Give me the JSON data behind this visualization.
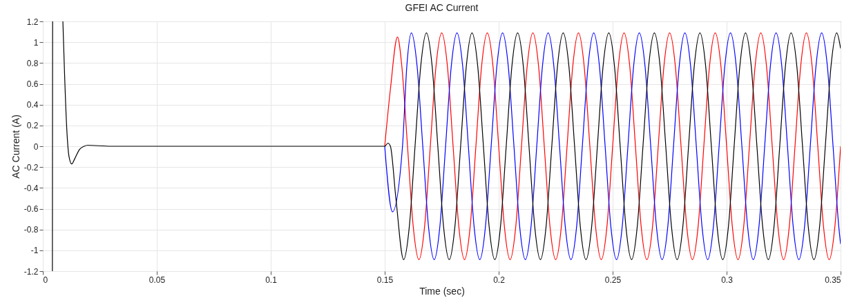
{
  "chart_data": {
    "type": "line",
    "title": "GFEI AC Current",
    "xlabel": "Time (sec)",
    "ylabel": "AC Current (A)",
    "xlim": [
      0,
      0.35
    ],
    "ylim": [
      -1.2,
      1.2
    ],
    "xticks": [
      0,
      0.05,
      0.1,
      0.15,
      0.2,
      0.25,
      0.3,
      0.35
    ],
    "yticks": [
      -1.2,
      -1,
      -0.8,
      -0.6,
      -0.4,
      -0.2,
      0,
      0.2,
      0.4,
      0.6,
      0.8,
      1,
      1.2
    ],
    "grid": true,
    "series": [
      {
        "color": "#ff0000",
        "x": [
          0.15,
          0.1525,
          0.1556,
          0.1575,
          0.16,
          0.1625,
          0.165,
          0.1675,
          0.17,
          0.1725,
          0.175,
          0.1775,
          0.18,
          0.1825,
          0.185,
          0.1875,
          0.19,
          0.1925,
          0.195,
          0.1975,
          0.2,
          0.2025,
          0.205,
          0.2075,
          0.21,
          0.2125,
          0.215,
          0.2175,
          0.22,
          0.2225,
          0.225,
          0.2275,
          0.23,
          0.2325,
          0.235,
          0.2375,
          0.24,
          0.2425,
          0.245,
          0.2475,
          0.25,
          0.2525,
          0.255,
          0.2575,
          0.26,
          0.2625,
          0.265,
          0.2675,
          0.27,
          0.2725,
          0.275,
          0.2775,
          0.28,
          0.2825,
          0.285,
          0.2875,
          0.29,
          0.2925,
          0.295,
          0.2975,
          0.3,
          0.3025,
          0.305,
          0.3075,
          0.31,
          0.3125,
          0.315,
          0.3175,
          0.32,
          0.3225,
          0.325,
          0.3275,
          0.33,
          0.3325,
          0.335,
          0.3375,
          0.34,
          0.3425,
          0.345,
          0.3475,
          0.35
        ],
        "values": [
          0,
          0.55,
          1.05,
          0.77,
          0,
          -0.77,
          -1.09,
          -0.77,
          0,
          0.77,
          1.09,
          0.77,
          0,
          -0.77,
          -1.09,
          -0.77,
          0,
          0.77,
          1.09,
          0.77,
          0,
          -0.77,
          -1.09,
          -0.77,
          0,
          0.77,
          1.09,
          0.77,
          0,
          -0.77,
          -1.09,
          -0.77,
          0,
          0.77,
          1.09,
          0.77,
          0,
          -0.77,
          -1.09,
          -0.77,
          0,
          0.77,
          1.09,
          0.77,
          0,
          -0.77,
          -1.09,
          -0.77,
          0,
          0.77,
          1.09,
          0.77,
          0,
          -0.77,
          -1.09,
          -0.77,
          0,
          0.77,
          1.09,
          0.77,
          0,
          -0.77,
          -1.09,
          -0.77,
          0,
          0.77,
          1.09,
          0.77,
          0,
          -0.77,
          -1.09,
          -0.77,
          0,
          0.77,
          1.09,
          0.77,
          0,
          -0.77,
          -1.09,
          -0.77,
          0
        ]
      },
      {
        "color": "#0000ff",
        "x": [
          0.15,
          0.1534,
          0.1578,
          0.1597,
          0.1617,
          0.1642,
          0.1667,
          0.1692,
          0.1717,
          0.1742,
          0.1767,
          0.1792,
          0.1817,
          0.1842,
          0.1867,
          0.1892,
          0.1917,
          0.1942,
          0.1967,
          0.1992,
          0.2017,
          0.2042,
          0.2067,
          0.2092,
          0.2117,
          0.2142,
          0.2167,
          0.2192,
          0.2217,
          0.2242,
          0.2267,
          0.2292,
          0.2317,
          0.2342,
          0.2367,
          0.2392,
          0.2417,
          0.2442,
          0.2467,
          0.2492,
          0.2517,
          0.2542,
          0.2567,
          0.2592,
          0.2617,
          0.2642,
          0.2667,
          0.2692,
          0.2717,
          0.2742,
          0.2767,
          0.2792,
          0.2817,
          0.2842,
          0.2867,
          0.2892,
          0.2917,
          0.2942,
          0.2967,
          0.2992,
          0.3017,
          0.3042,
          0.3067,
          0.3092,
          0.3117,
          0.3142,
          0.3167,
          0.3192,
          0.3217,
          0.3242,
          0.3267,
          0.3292,
          0.3317,
          0.3342,
          0.3367,
          0.3392,
          0.3417,
          0.3442,
          0.3467,
          0.3492,
          0.35
        ],
        "values": [
          0,
          -0.63,
          0,
          0.77,
          1.09,
          0.77,
          0,
          -0.77,
          -1.09,
          -0.77,
          0,
          0.77,
          1.09,
          0.77,
          0,
          -0.77,
          -1.09,
          -0.77,
          0,
          0.77,
          1.09,
          0.77,
          0,
          -0.77,
          -1.09,
          -0.77,
          0,
          0.77,
          1.09,
          0.77,
          0,
          -0.77,
          -1.09,
          -0.77,
          0,
          0.77,
          1.09,
          0.77,
          0,
          -0.77,
          -1.09,
          -0.77,
          0,
          0.77,
          1.09,
          0.77,
          0,
          -0.77,
          -1.09,
          -0.77,
          0,
          0.77,
          1.09,
          0.77,
          0,
          -0.77,
          -1.09,
          -0.77,
          0,
          0.77,
          1.09,
          0.77,
          0,
          -0.77,
          -1.09,
          -0.77,
          0,
          0.77,
          1.09,
          0.77,
          0,
          -0.77,
          -1.09,
          -0.77,
          0,
          0.77,
          1.09,
          0.77,
          0,
          -0.77,
          -0.94
        ]
      },
      {
        "color": "#000000",
        "x": [
          0.0042,
          0.0043,
          0.006,
          0.0088,
          0.0095,
          0.0105,
          0.0115,
          0.0127,
          0.014,
          0.0161,
          0.0181,
          0.0196,
          0.03,
          0.15,
          0.1514,
          0.1525,
          0.1549,
          0.1583,
          0.1608,
          0.1633,
          0.1658,
          0.1683,
          0.1708,
          0.1733,
          0.1758,
          0.1783,
          0.1808,
          0.1833,
          0.1858,
          0.1883,
          0.1908,
          0.1933,
          0.1958,
          0.1983,
          0.2008,
          0.2033,
          0.2058,
          0.2083,
          0.2108,
          0.2133,
          0.2158,
          0.2183,
          0.2208,
          0.2233,
          0.2258,
          0.2283,
          0.2308,
          0.2333,
          0.2358,
          0.2383,
          0.2408,
          0.2433,
          0.2458,
          0.2483,
          0.2508,
          0.2533,
          0.2558,
          0.2583,
          0.2608,
          0.2633,
          0.2658,
          0.2683,
          0.2708,
          0.2733,
          0.2758,
          0.2783,
          0.2808,
          0.2833,
          0.2858,
          0.2883,
          0.2908,
          0.2933,
          0.2958,
          0.2983,
          0.3008,
          0.3033,
          0.3058,
          0.3083,
          0.3108,
          0.3133,
          0.3158,
          0.3183,
          0.3208,
          0.3233,
          0.3258,
          0.3283,
          0.3308,
          0.3333,
          0.3358,
          0.3383,
          0.3408,
          0.3433,
          0.3458,
          0.3483,
          0.35
        ],
        "values": [
          -1.2,
          1.2,
          null,
          1.2,
          0.72,
          0.17,
          -0.1,
          -0.17,
          -0.12,
          -0.03,
          0,
          0.01,
          0,
          0,
          0.03,
          0,
          -0.5,
          -1.09,
          -0.77,
          0,
          0.77,
          1.09,
          0.77,
          0,
          -0.77,
          -1.09,
          -0.77,
          0,
          0.77,
          1.09,
          0.77,
          0,
          -0.77,
          -1.09,
          -0.77,
          0,
          0.77,
          1.09,
          0.77,
          0,
          -0.77,
          -1.09,
          -0.77,
          0,
          0.77,
          1.09,
          0.77,
          0,
          -0.77,
          -1.09,
          -0.77,
          0,
          0.77,
          1.09,
          0.77,
          0,
          -0.77,
          -1.09,
          -0.77,
          0,
          0.77,
          1.09,
          0.77,
          0,
          -0.77,
          -1.09,
          -0.77,
          0,
          0.77,
          1.09,
          0.77,
          0,
          -0.77,
          -1.09,
          -0.77,
          0,
          0.77,
          1.09,
          0.77,
          0,
          -0.77,
          -1.09,
          -0.77,
          0,
          0.77,
          1.09,
          0.77,
          0,
          -0.77,
          -1.09,
          -0.77,
          0,
          0.77,
          1.09,
          0.94
        ]
      }
    ]
  }
}
